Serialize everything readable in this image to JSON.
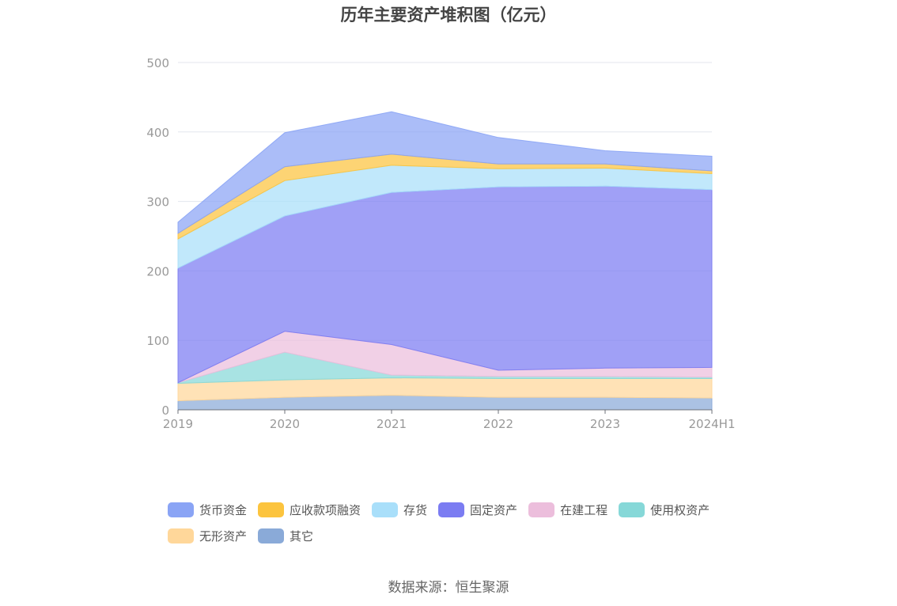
{
  "chart_data": {
    "type": "area",
    "stacked": true,
    "title": "历年主要资产堆积图（亿元）",
    "x": [
      "2019",
      "2020",
      "2021",
      "2022",
      "2023",
      "2024H1"
    ],
    "ylim": [
      0,
      500
    ],
    "yticks": [
      0,
      100,
      200,
      300,
      400,
      500
    ],
    "grid": true,
    "legend_position": "bottom",
    "series": [
      {
        "name": "其它",
        "color": "#8aaad8",
        "values": [
          13,
          18,
          21,
          18,
          18,
          17
        ]
      },
      {
        "name": "无形资产",
        "color": "#ffd79a",
        "values": [
          25,
          25,
          25,
          27,
          27,
          28
        ]
      },
      {
        "name": "使用权资产",
        "color": "#86d8d8",
        "values": [
          1,
          40,
          4,
          3,
          3,
          2
        ]
      },
      {
        "name": "在建工程",
        "color": "#ecbedc",
        "values": [
          0,
          30,
          44,
          9,
          12,
          14
        ]
      },
      {
        "name": "固定资产",
        "color": "#7b7cf2",
        "values": [
          165,
          166,
          219,
          264,
          262,
          256
        ]
      },
      {
        "name": "存货",
        "color": "#a9dffa",
        "values": [
          42,
          51,
          39,
          26,
          26,
          23
        ]
      },
      {
        "name": "应收款项融资",
        "color": "#fcc43e",
        "values": [
          8,
          20,
          16,
          7,
          6,
          4
        ]
      },
      {
        "name": "货币资金",
        "color": "#8aa4f5",
        "values": [
          16,
          49,
          61,
          38,
          19,
          21
        ]
      }
    ],
    "legend_order": [
      "货币资金",
      "应收款项融资",
      "存货",
      "固定资产",
      "在建工程",
      "使用权资产",
      "无形资产",
      "其它"
    ]
  },
  "source": "数据来源：恒生聚源"
}
